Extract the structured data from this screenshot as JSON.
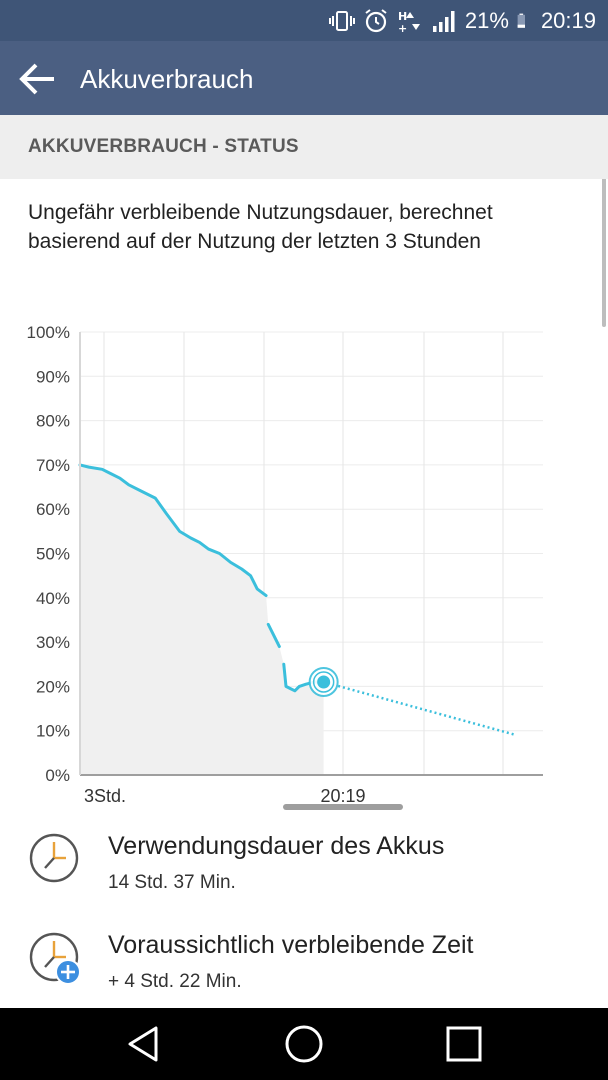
{
  "status_bar": {
    "battery_percent": "21%",
    "time": "20:19"
  },
  "app_bar": {
    "title": "Akkuverbrauch"
  },
  "section": {
    "header": "AKKUVERBRAUCH - STATUS"
  },
  "description": "Ungefähr verbleibende Nutzungsdauer, berechnet basierend auf der Nutzung der letzten 3 Stunden",
  "chart_data": {
    "type": "line",
    "y_ticks": [
      "100%",
      "90%",
      "80%",
      "70%",
      "60%",
      "50%",
      "40%",
      "30%",
      "20%",
      "10%",
      "0%"
    ],
    "x_labels": [
      "3Std.",
      "20:19"
    ],
    "ylim": [
      0,
      100
    ],
    "grid": true,
    "series": [
      {
        "values": [
          [
            0,
            70
          ],
          [
            0.4,
            69.5
          ],
          [
            1.0,
            69
          ],
          [
            1.4,
            68
          ],
          [
            1.8,
            67
          ],
          [
            2.2,
            65.5
          ],
          [
            2.8,
            64
          ],
          [
            3.4,
            62.5
          ],
          [
            3.9,
            59
          ],
          [
            4.5,
            55
          ],
          [
            5.0,
            53.5
          ],
          [
            5.4,
            52.5
          ],
          [
            5.8,
            51
          ],
          [
            6.3,
            50
          ],
          [
            6.8,
            48
          ],
          [
            7.3,
            46.5
          ],
          [
            7.7,
            45
          ],
          [
            8.0,
            42
          ],
          [
            8.4,
            40.5
          ]
        ]
      },
      {
        "values": [
          [
            8.5,
            34
          ],
          [
            8.8,
            31
          ],
          [
            9.0,
            29
          ]
        ]
      },
      {
        "values": [
          [
            9.2,
            25
          ],
          [
            9.3,
            20
          ],
          [
            9.5,
            19.5
          ],
          [
            9.7,
            19
          ],
          [
            9.9,
            20
          ],
          [
            10.2,
            20.5
          ],
          [
            10.6,
            21
          ],
          [
            11.0,
            21
          ]
        ]
      }
    ],
    "projection": {
      "values": [
        [
          11.0,
          21
        ],
        [
          19.7,
          9
        ]
      ]
    },
    "current_point": {
      "x": 11.0,
      "y": 21
    }
  },
  "items": [
    {
      "title": "Verwendungsdauer des Akkus",
      "subtitle": "14 Std. 37 Min.",
      "icon": "clock-icon"
    },
    {
      "title": "Voraussichtlich verbleibende Zeit",
      "subtitle": "+ 4 Std. 22 Min.",
      "icon": "clock-add-icon"
    }
  ],
  "colors": {
    "status_bar": "#3f5577",
    "app_bar": "#4b5f82",
    "accent": "#3bbfdc",
    "add_badge": "#3d8fe0"
  }
}
